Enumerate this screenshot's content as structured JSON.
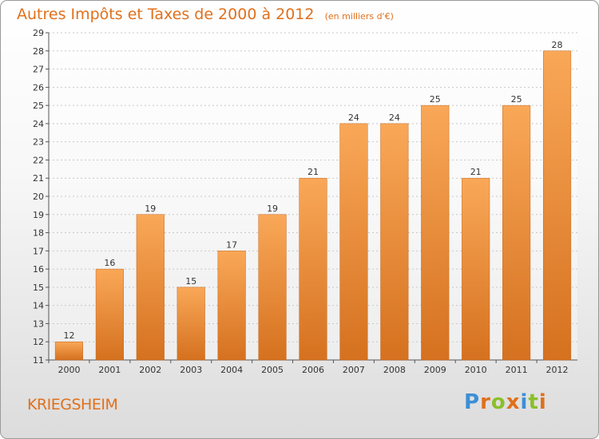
{
  "header": {
    "title": "Autres Impôts et Taxes de 2000 à 2012",
    "unit": "(en milliers d'€)"
  },
  "commune": "KRIEGSHEIM",
  "logo": {
    "text": "Proxiti",
    "letters": [
      {
        "char": "P",
        "color": "#3b8fd6"
      },
      {
        "char": "r",
        "color": "#e0701c"
      },
      {
        "char": "o",
        "color": "#8bbf2a"
      },
      {
        "char": "x",
        "color": "#e0701c"
      },
      {
        "char": "i",
        "color": "#3b8fd6"
      },
      {
        "char": "t",
        "color": "#8bbf2a"
      },
      {
        "char": "i",
        "color": "#e0701c"
      }
    ]
  },
  "colors": {
    "accent": "#e0701c",
    "bar_top": "#f9a858",
    "bar_bottom": "#d5711f",
    "grid": "#c8c8c8"
  },
  "chart_data": {
    "type": "bar",
    "categories": [
      "2000",
      "2001",
      "2002",
      "2003",
      "2004",
      "2005",
      "2006",
      "2007",
      "2008",
      "2009",
      "2010",
      "2011",
      "2012"
    ],
    "values": [
      12,
      16,
      19,
      15,
      17,
      19,
      21,
      24,
      24,
      25,
      21,
      25,
      28
    ],
    "ylim": [
      11,
      29
    ],
    "yticks": [
      11,
      12,
      13,
      14,
      15,
      16,
      17,
      18,
      19,
      20,
      21,
      22,
      23,
      24,
      25,
      26,
      27,
      28,
      29
    ],
    "grid": true,
    "title": "Autres Impôts et Taxes de 2000 à 2012",
    "xlabel": "",
    "ylabel": ""
  }
}
